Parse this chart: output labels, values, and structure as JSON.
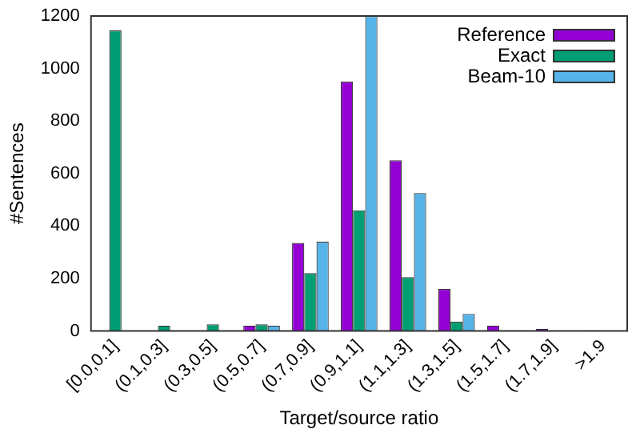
{
  "chart_data": {
    "type": "bar",
    "xlabel": "Target/source ratio",
    "ylabel": "#Sentences",
    "categories": [
      "[0.0,0.1]",
      "(0.1,0.3]",
      "(0.3,0.5]",
      "(0.5,0.7]",
      "(0.7,0.9]",
      "(0.9,1.1]",
      "(1.1,1.3]",
      "(1.3,1.5]",
      "(1.5,1.7]",
      "(1.7,1.9]",
      ">1.9"
    ],
    "series": [
      {
        "name": "Reference",
        "color": "#9400d3",
        "values": [
          0,
          0,
          0,
          20,
          335,
          950,
          650,
          160,
          20,
          8,
          2
        ]
      },
      {
        "name": "Exact",
        "color": "#009e73",
        "values": [
          1145,
          20,
          25,
          25,
          220,
          460,
          205,
          35,
          2,
          0,
          0
        ]
      },
      {
        "name": "Beam-10",
        "color": "#56b4e9",
        "values": [
          0,
          0,
          0,
          20,
          340,
          1200,
          525,
          65,
          2,
          0,
          0
        ]
      }
    ],
    "ylim": [
      0,
      1200
    ],
    "yticks": [
      0,
      200,
      400,
      600,
      800,
      1000,
      1200
    ],
    "grid": false,
    "legend": "top right"
  }
}
